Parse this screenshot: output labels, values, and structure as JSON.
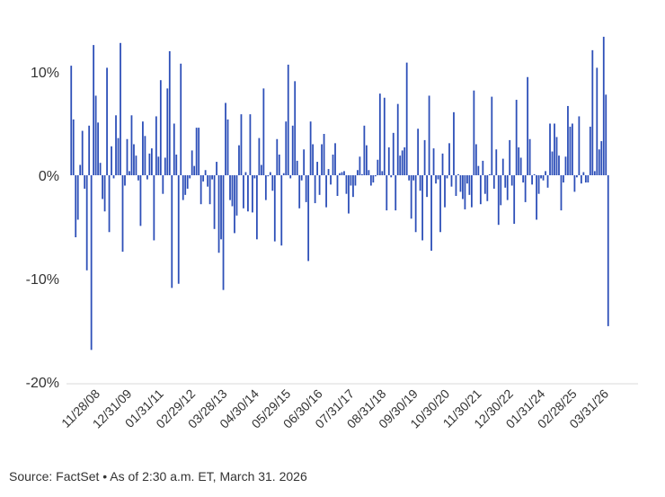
{
  "chart_data": {
    "type": "bar",
    "title": "",
    "xlabel": "",
    "ylabel": "",
    "ylim": [
      -20,
      15
    ],
    "grid": false,
    "legend": "none",
    "y_ticks": [
      {
        "value": 10,
        "label": "10%"
      },
      {
        "value": 0,
        "label": "0%"
      },
      {
        "value": -10,
        "label": "-10%"
      },
      {
        "value": -20,
        "label": "-20%"
      }
    ],
    "x_tick_labels": [
      "11/28/08",
      "12/31/09",
      "01/31/11",
      "02/29/12",
      "03/28/13",
      "04/30/14",
      "05/29/15",
      "06/30/16",
      "07/31/17",
      "08/31/18",
      "09/30/19",
      "10/30/20",
      "11/30/21",
      "12/30/22",
      "01/31/24",
      "02/28/25",
      "03/31/26"
    ],
    "series": [
      {
        "values": [
          10.6,
          5.4,
          -6,
          -4.3,
          1,
          4.3,
          -1.3,
          -9.2,
          4.8,
          -16.9,
          12.6,
          7.7,
          5.1,
          1.2,
          -2.3,
          -3.5,
          10.4,
          -5.5,
          2.8,
          -0.3,
          5.8,
          3.6,
          12.8,
          -7.4,
          -1,
          3.5,
          0.4,
          5.8,
          3,
          1.9,
          -0.5,
          -4.9,
          5.2,
          3.8,
          -0.4,
          2.1,
          2.6,
          -6.3,
          5.7,
          1.8,
          9.2,
          -1.8,
          1.7,
          8.4,
          12,
          -10.9,
          5,
          2,
          -10.5,
          10.8,
          -2.4,
          -1.9,
          -1.3,
          -0.3,
          2.4,
          0.9,
          4.6,
          4.6,
          -2.8,
          -0.6,
          0.5,
          -1.1,
          -2.8,
          -0.4,
          -5.2,
          1.3,
          -7.5,
          -6.2,
          -11.1,
          7,
          5.4,
          -2.4,
          -3,
          -5.6,
          -3.9,
          2.9,
          5.9,
          -3.2,
          0.3,
          -3.5,
          5.9,
          -3.6,
          -0.3,
          -6.2,
          3.6,
          1,
          8.4,
          -2.4,
          -0.1,
          0.3,
          -1.5,
          -6.4,
          3.5,
          2,
          -6.8,
          0.2,
          5.2,
          10.7,
          -0.3,
          4.8,
          9.1,
          1.4,
          -3.2,
          -0.5,
          2.5,
          -2.6,
          -8.3,
          5.2,
          3,
          -2.7,
          1.3,
          -1.9,
          3,
          4,
          -3.1,
          0.6,
          -0.9,
          2,
          3.1,
          -2,
          0.2,
          0.3,
          0.4,
          -1.8,
          -3.7,
          -1,
          -2.1,
          -1,
          0.5,
          1.8,
          0.1,
          4.8,
          2.9,
          0.5,
          -1,
          -0.7,
          -0.1,
          1.5,
          7.9,
          0.4,
          7.5,
          -3.4,
          2.7,
          -0.2,
          4.1,
          -3.4,
          6.9,
          1.9,
          2.4,
          2.7,
          10.9,
          -0.5,
          -4.2,
          -0.5,
          -5.5,
          4.5,
          -1.5,
          -6.3,
          3.4,
          -2.1,
          7.7,
          -7.3,
          2.6,
          -0.8,
          -0.4,
          -5.5,
          2.1,
          -3.1,
          -0.3,
          3.1,
          -1.1,
          6.1,
          -2,
          0.1,
          -1.6,
          -2.3,
          -3.3,
          -0.8,
          -1.9,
          -3.1,
          8.2,
          3,
          0.9,
          -2.8,
          1.4,
          -1.8,
          -2.5,
          0.1,
          7.6,
          -1.3,
          2.5,
          -4.8,
          -2.9,
          1.6,
          -1.2,
          -2.4,
          3.4,
          -1,
          -4.7,
          7.3,
          2.7,
          1.7,
          -0.7,
          -2.6,
          9.5,
          3.5,
          -0.9,
          0.1,
          -4.3,
          -1.8,
          -0.3,
          -0.5,
          0.4,
          -1.2,
          5,
          2.3,
          5,
          3.7,
          1.9,
          -3.4,
          -0.7,
          1.8,
          6.7,
          4.7,
          5,
          -1.6,
          -0.2,
          5.7,
          -0.8,
          0.3,
          -0.7,
          -0.7,
          4.7,
          12.1,
          0.4,
          10.4,
          2.5,
          3.3,
          13.4,
          7.8,
          -14.6
        ]
      }
    ],
    "colors": {
      "bar": "#2d4fb8",
      "axis": "#d9d9d9",
      "text": "#333333"
    }
  },
  "footer": {
    "source": "Source: FactSet • As of 2:30 a.m. ET, March 31. 2026"
  }
}
